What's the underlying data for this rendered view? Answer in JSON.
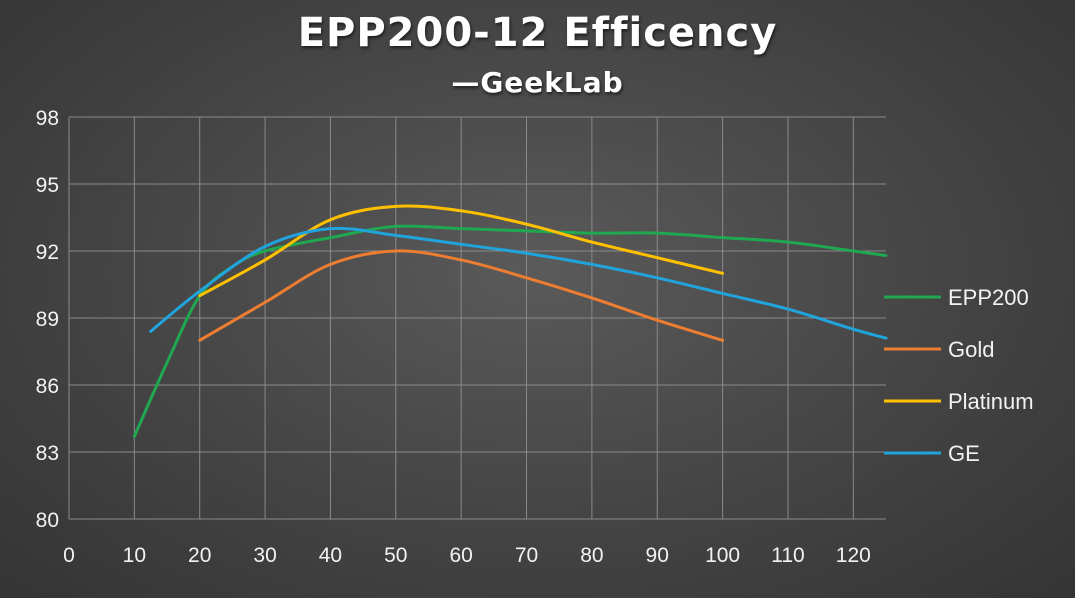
{
  "chart_data": {
    "type": "line",
    "title": "EPP200-12 Efficency",
    "subtitle": "—GeekLab",
    "xlabel": "",
    "ylabel": "",
    "xlim": [
      0,
      125
    ],
    "ylim": [
      80,
      98
    ],
    "x_ticks": [
      0,
      10,
      20,
      30,
      40,
      50,
      60,
      70,
      80,
      90,
      100,
      110,
      120
    ],
    "y_ticks": [
      80,
      83,
      86,
      89,
      92,
      95,
      98
    ],
    "grid": true,
    "legend_position": "right",
    "series": [
      {
        "name": "EPP200",
        "color": "#1fa84f",
        "points": [
          [
            10,
            83.7
          ],
          [
            15,
            87
          ],
          [
            20,
            90
          ],
          [
            25,
            91.3
          ],
          [
            30,
            92.0
          ],
          [
            40,
            92.6
          ],
          [
            50,
            93.1
          ],
          [
            60,
            93.0
          ],
          [
            70,
            92.9
          ],
          [
            80,
            92.8
          ],
          [
            90,
            92.8
          ],
          [
            100,
            92.6
          ],
          [
            110,
            92.4
          ],
          [
            120,
            92.0
          ],
          [
            125,
            91.8
          ]
        ]
      },
      {
        "name": "Gold",
        "color": "#ed7d31",
        "points": [
          [
            20,
            88
          ],
          [
            30,
            89.7
          ],
          [
            40,
            91.4
          ],
          [
            50,
            92.0
          ],
          [
            60,
            91.6
          ],
          [
            70,
            90.8
          ],
          [
            80,
            89.9
          ],
          [
            90,
            88.9
          ],
          [
            100,
            88.0
          ]
        ]
      },
      {
        "name": "Platinum",
        "color": "#ffc000",
        "points": [
          [
            20,
            90
          ],
          [
            30,
            91.6
          ],
          [
            40,
            93.4
          ],
          [
            50,
            94.0
          ],
          [
            60,
            93.8
          ],
          [
            70,
            93.2
          ],
          [
            80,
            92.4
          ],
          [
            90,
            91.7
          ],
          [
            100,
            91.0
          ]
        ]
      },
      {
        "name": "GE",
        "color": "#21a3dc",
        "points": [
          [
            12.5,
            88.4
          ],
          [
            20,
            90.2
          ],
          [
            30,
            92.2
          ],
          [
            40,
            93.0
          ],
          [
            50,
            92.7
          ],
          [
            60,
            92.3
          ],
          [
            70,
            91.9
          ],
          [
            80,
            91.4
          ],
          [
            90,
            90.8
          ],
          [
            100,
            90.1
          ],
          [
            110,
            89.4
          ],
          [
            120,
            88.5
          ],
          [
            125,
            88.1
          ]
        ]
      }
    ]
  }
}
